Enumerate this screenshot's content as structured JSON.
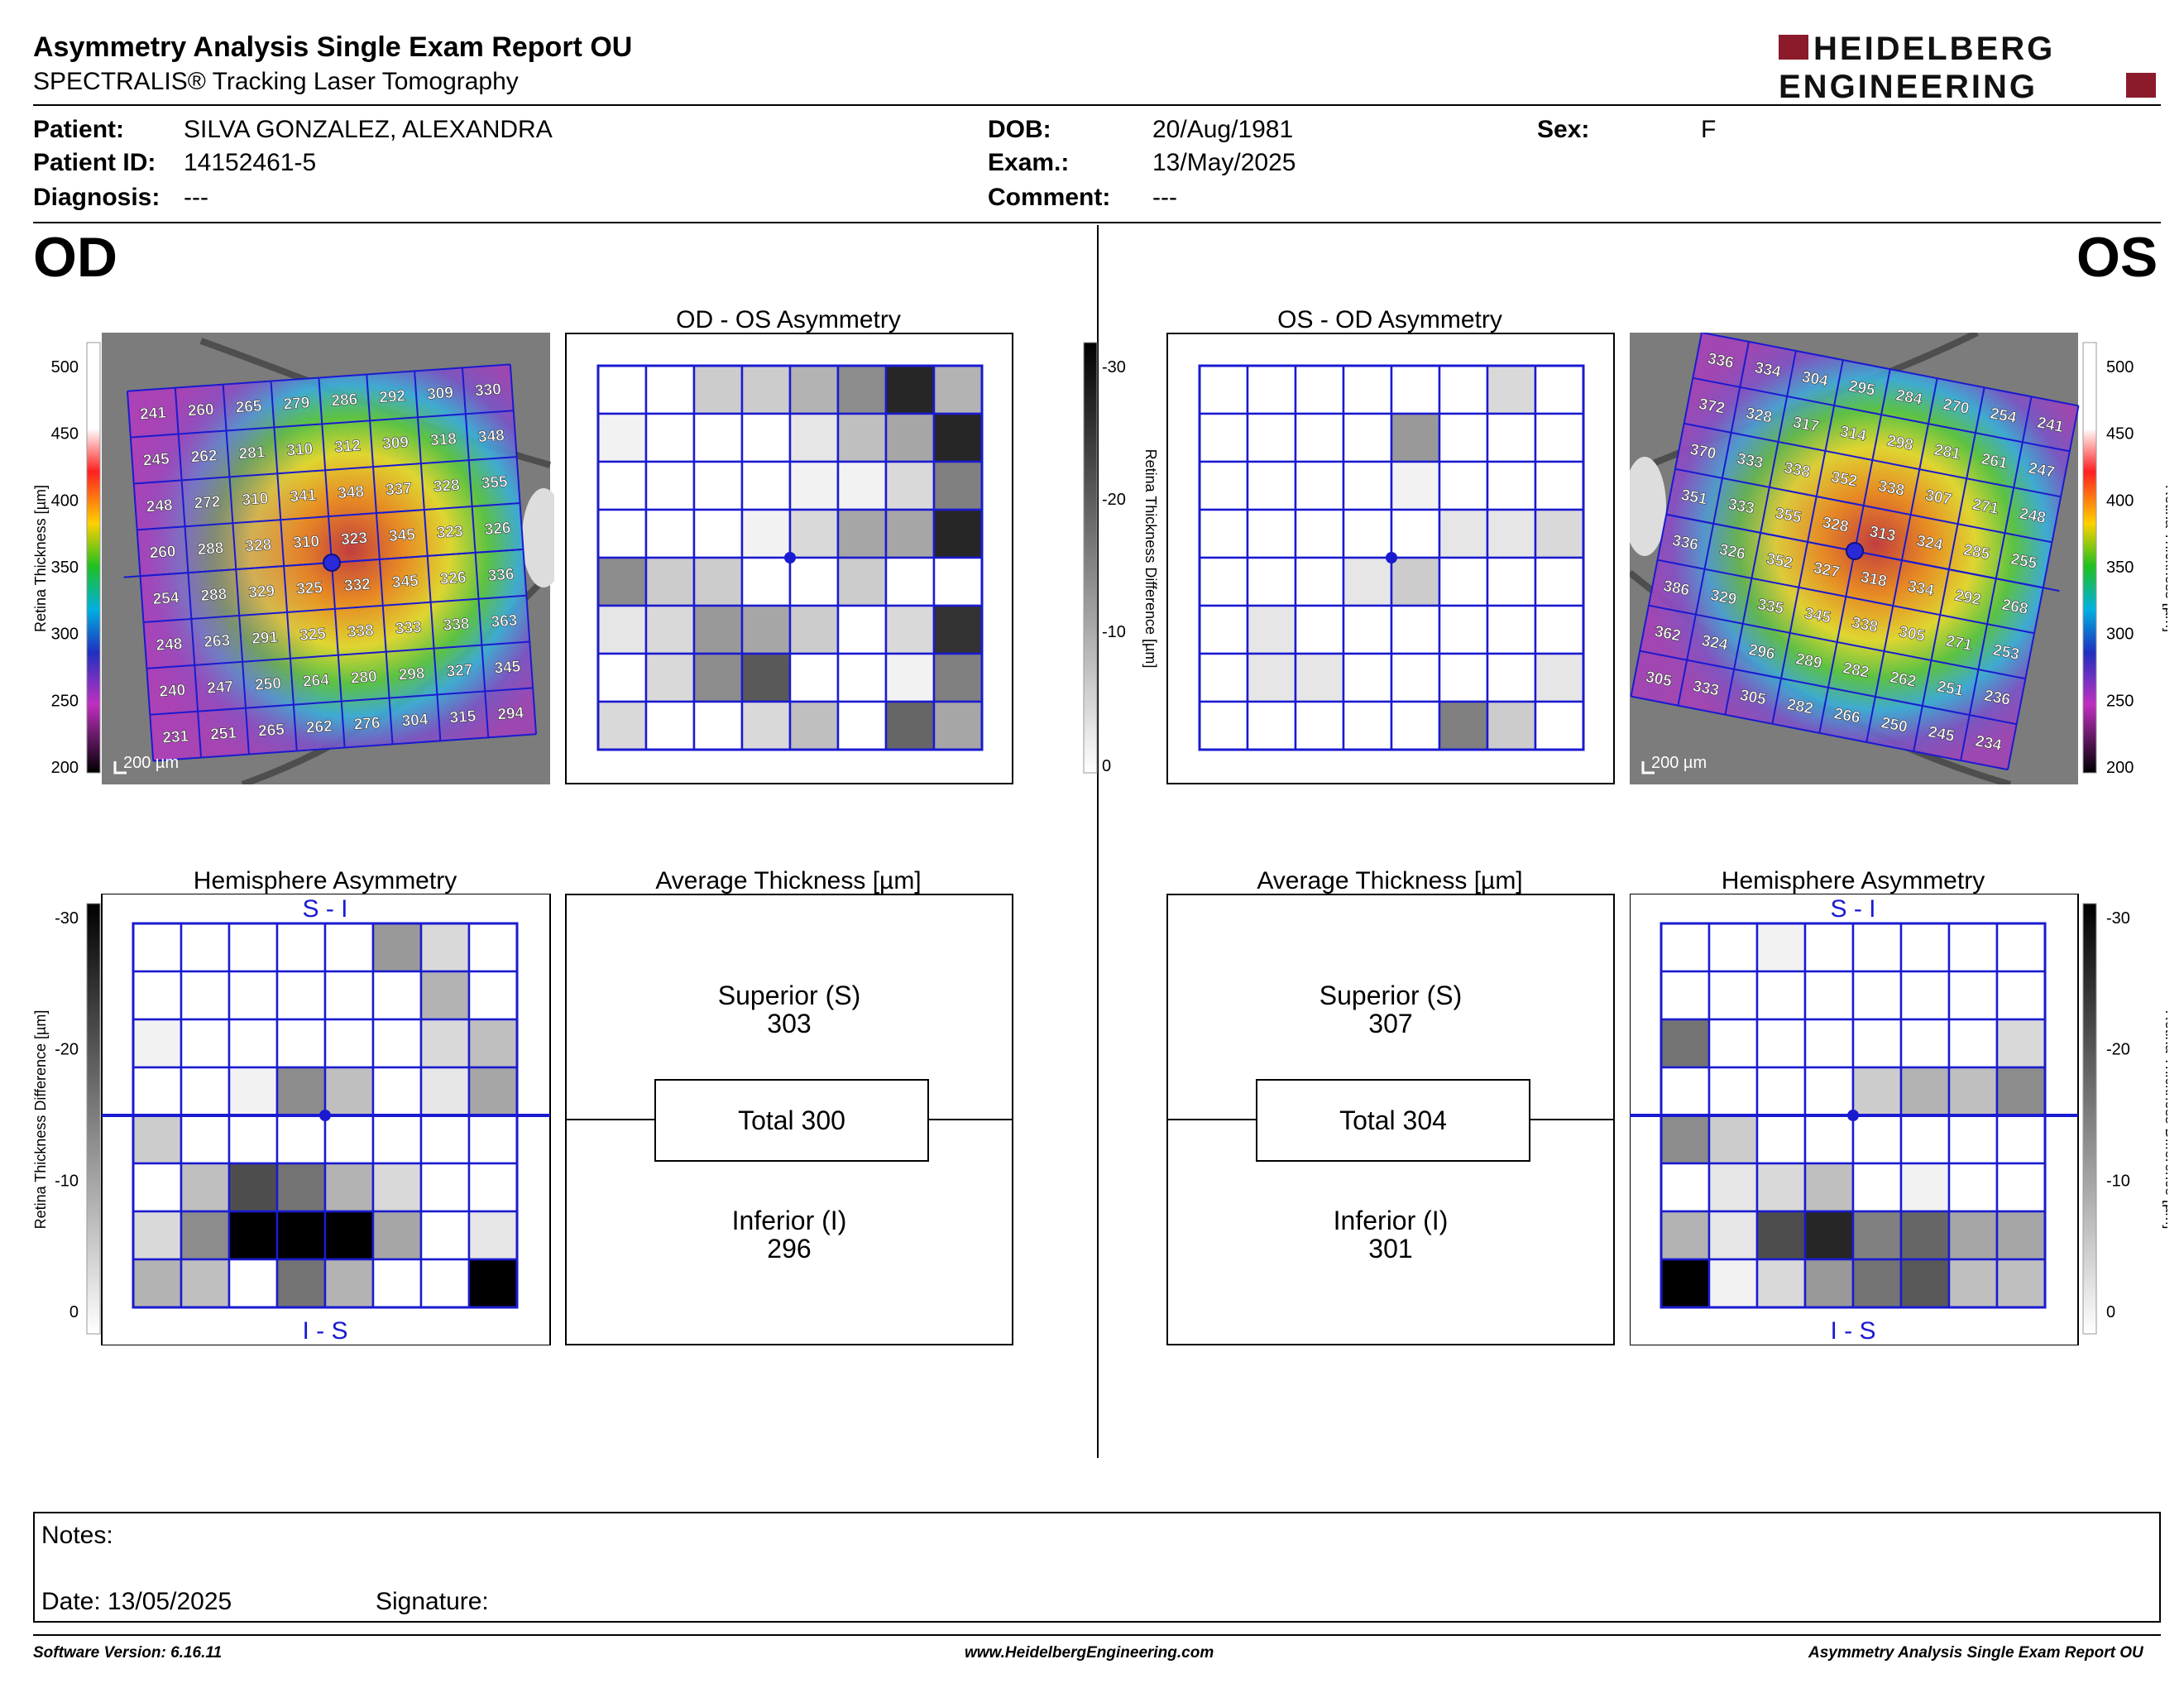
{
  "header": {
    "title": "Asymmetry Analysis Single Exam Report OU",
    "subtitle": "SPECTRALIS® Tracking Laser Tomography",
    "logo_line1": "HEIDELBERG",
    "logo_line2": "ENGINEERING",
    "logo_color": "#8b1a2b"
  },
  "patient": {
    "patient_label": "Patient:",
    "patient_value": "SILVA GONZALEZ, ALEXANDRA",
    "id_label": "Patient ID:",
    "id_value": "14152461-5",
    "diag_label": "Diagnosis:",
    "diag_value": "---",
    "dob_label": "DOB:",
    "dob_value": "20/Aug/1981",
    "exam_label": "Exam.:",
    "exam_value": "13/May/2025",
    "comment_label": "Comment:",
    "comment_value": "---",
    "sex_label": "Sex:",
    "sex_value": "F"
  },
  "od": {
    "eye_label": "OD",
    "scale_bar": "200 µm",
    "thickness_scale": {
      "title": "Retina  Thickness [µm]",
      "ticks": [
        "500",
        "450",
        "400",
        "350",
        "300",
        "250",
        "200"
      ]
    },
    "grid_values": [
      [
        241,
        260,
        265,
        279,
        286,
        292,
        309,
        330
      ],
      [
        245,
        262,
        281,
        310,
        312,
        309,
        318,
        348
      ],
      [
        248,
        272,
        310,
        341,
        348,
        337,
        328,
        355
      ],
      [
        260,
        288,
        328,
        310,
        323,
        345,
        323,
        326
      ],
      [
        254,
        288,
        329,
        325,
        332,
        345,
        326,
        336
      ],
      [
        248,
        263,
        291,
        325,
        338,
        333,
        338,
        363
      ],
      [
        240,
        247,
        250,
        264,
        280,
        298,
        327,
        345
      ],
      [
        231,
        251,
        265,
        262,
        276,
        304,
        315,
        294
      ]
    ],
    "asym_title": "OD - OS Asymmetry",
    "asym_levels": [
      [
        0,
        0,
        0.2,
        0.2,
        0.3,
        0.45,
        0.85,
        0.3
      ],
      [
        0.05,
        0,
        0,
        0,
        0.1,
        0.25,
        0.35,
        0.85
      ],
      [
        0,
        0,
        0,
        0,
        0.05,
        0.05,
        0.15,
        0.5
      ],
      [
        0,
        0,
        0,
        0.05,
        0.15,
        0.35,
        0.35,
        0.85
      ],
      [
        0.45,
        0.2,
        0.2,
        0,
        0,
        0.2,
        0,
        0
      ],
      [
        0.1,
        0.15,
        0.4,
        0.35,
        0.2,
        0,
        0.15,
        0.8
      ],
      [
        0,
        0.15,
        0.45,
        0.65,
        0,
        0,
        0.05,
        0.5
      ],
      [
        0.15,
        0,
        0,
        0.15,
        0.25,
        0,
        0.6,
        0.35
      ]
    ],
    "hemi_title": "Hemisphere Asymmetry",
    "hemi_top": "S - I",
    "hemi_bottom": "I - S",
    "hemi_levels": [
      [
        0,
        0,
        0,
        0,
        0,
        0.4,
        0.15,
        0
      ],
      [
        0,
        0,
        0,
        0,
        0,
        0,
        0.3,
        0
      ],
      [
        0.05,
        0,
        0,
        0,
        0,
        0,
        0.15,
        0.25
      ],
      [
        0,
        0,
        0.05,
        0.45,
        0.25,
        0,
        0.1,
        0.35
      ],
      [
        0.2,
        0,
        0,
        0,
        0,
        0,
        0,
        0
      ],
      [
        0,
        0.25,
        0.7,
        0.55,
        0.3,
        0.15,
        0,
        0
      ],
      [
        0.15,
        0.45,
        1,
        1,
        1,
        0.35,
        0,
        0.1
      ],
      [
        0.3,
        0.25,
        0,
        0.55,
        0.3,
        0,
        0,
        1
      ]
    ],
    "avg_title": "Average Thickness [µm]",
    "superior_label": "Superior (S)",
    "superior_value": "303",
    "total_label": "Total 300",
    "inferior_label": "Inferior (I)",
    "inferior_value": "296"
  },
  "os": {
    "eye_label": "OS",
    "scale_bar": "200 µm",
    "thickness_scale": {
      "title": "Retina  Thickness [µm]",
      "ticks": [
        "500",
        "450",
        "400",
        "350",
        "300",
        "250",
        "200"
      ]
    },
    "grid_values": [
      [
        336,
        334,
        304,
        295,
        284,
        270,
        254,
        241
      ],
      [
        372,
        328,
        317,
        314,
        298,
        281,
        261,
        247
      ],
      [
        370,
        333,
        338,
        352,
        338,
        307,
        271,
        248
      ],
      [
        351,
        333,
        355,
        328,
        313,
        324,
        285,
        255
      ],
      [
        336,
        326,
        352,
        327,
        318,
        334,
        292,
        268
      ],
      [
        386,
        329,
        335,
        345,
        338,
        305,
        271,
        253
      ],
      [
        362,
        324,
        296,
        289,
        282,
        262,
        251,
        236
      ],
      [
        305,
        333,
        305,
        282,
        266,
        250,
        245,
        234
      ]
    ],
    "asym_title": "OS - OD Asymmetry",
    "asym_levels": [
      [
        0,
        0,
        0,
        0,
        0,
        0,
        0.15,
        0
      ],
      [
        0,
        0,
        0,
        0,
        0.4,
        0,
        0,
        0
      ],
      [
        0,
        0,
        0,
        0,
        0.05,
        0,
        0,
        0
      ],
      [
        0,
        0,
        0,
        0,
        0,
        0.1,
        0.1,
        0.15
      ],
      [
        0,
        0,
        0,
        0.1,
        0.2,
        0,
        0,
        0
      ],
      [
        0,
        0.1,
        0,
        0,
        0,
        0,
        0,
        0
      ],
      [
        0,
        0.1,
        0.1,
        0,
        0,
        0,
        0,
        0.1
      ],
      [
        0,
        0,
        0,
        0,
        0,
        0.5,
        0.2,
        0
      ]
    ],
    "hemi_title": "Hemisphere Asymmetry",
    "hemi_top": "S - I",
    "hemi_bottom": "I - S",
    "hemi_levels": [
      [
        0,
        0,
        0.05,
        0,
        0,
        0,
        0,
        0
      ],
      [
        0,
        0,
        0,
        0,
        0,
        0,
        0,
        0
      ],
      [
        0.55,
        0,
        0,
        0,
        0,
        0,
        0,
        0.15
      ],
      [
        0,
        0,
        0,
        0,
        0.2,
        0.3,
        0.25,
        0.45
      ],
      [
        0.45,
        0.2,
        0,
        0,
        0,
        0,
        0,
        0
      ],
      [
        0,
        0.1,
        0.15,
        0.25,
        0,
        0.05,
        0,
        0
      ],
      [
        0.3,
        0.1,
        0.7,
        0.85,
        0.5,
        0.6,
        0.35,
        0.35
      ],
      [
        1,
        0.05,
        0.15,
        0.4,
        0.55,
        0.65,
        0.25,
        0.25
      ]
    ],
    "avg_title": "Average Thickness [µm]",
    "superior_label": "Superior (S)",
    "superior_value": "307",
    "total_label": "Total 304",
    "inferior_label": "Inferior (I)",
    "inferior_value": "301"
  },
  "diff_scale": {
    "title": "Retina Thickness Difference [µm]",
    "ticks": [
      "-30",
      "-20",
      "-10",
      "0"
    ]
  },
  "notes": {
    "notes_label": "Notes:",
    "date_label": "Date: 13/05/2025",
    "signature_label": "Signature:"
  },
  "footer": {
    "software": "Software Version: 6.16.11",
    "website": "www.HeidelbergEngineering.com",
    "report": "Asymmetry Analysis Single Exam Report OU"
  }
}
